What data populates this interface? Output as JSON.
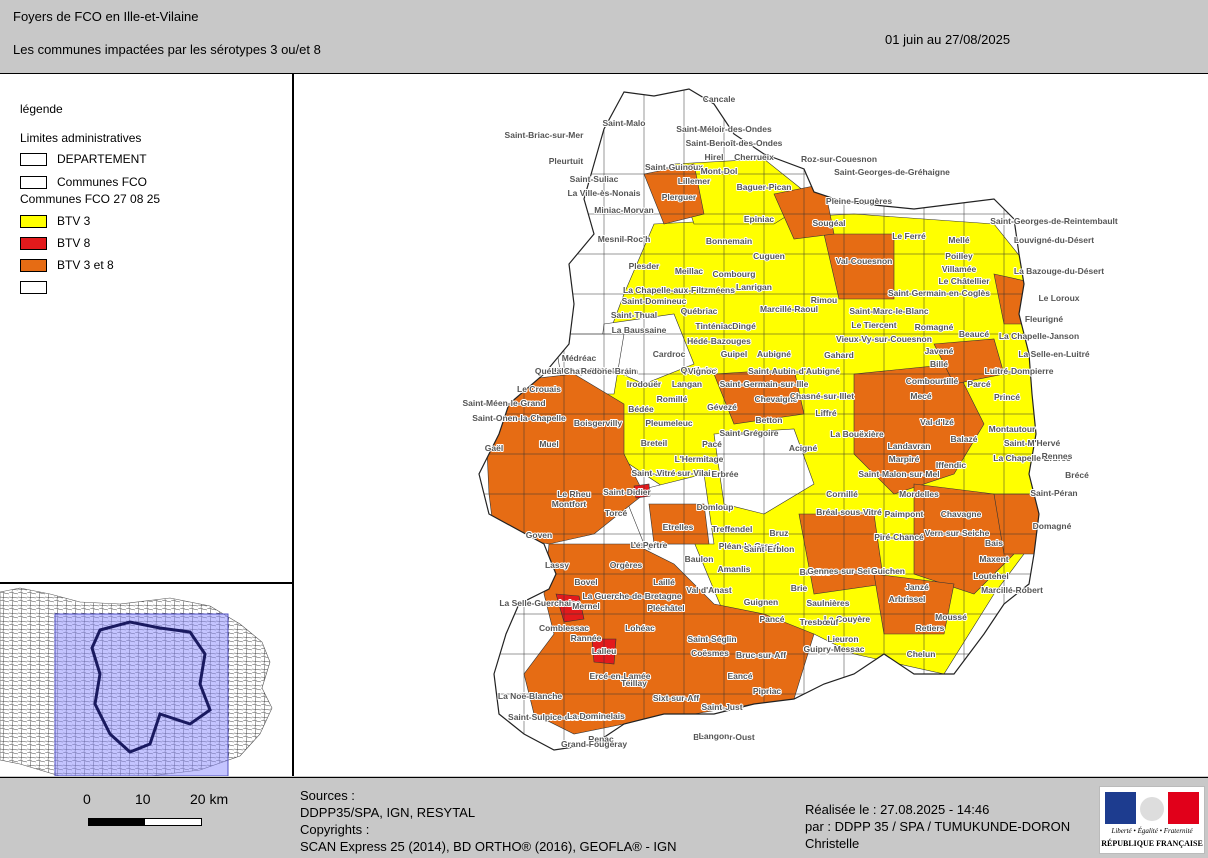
{
  "header": {
    "title": "Foyers de FCO en Ille-et-Vilaine",
    "subtitle": "Les communes impactées par les sérotypes 3 ou/et 8",
    "period": "01 juin au 27/08/2025"
  },
  "legend": {
    "title": "légende",
    "section_admin": "Limites administratives",
    "departement": "DEPARTEMENT",
    "communes": "Communes FCO",
    "section_fco": "Communes FCO 27 08 25",
    "btv3": "BTV 3",
    "btv8": "BTV 8",
    "btv38": "BTV 3 et 8",
    "colors": {
      "btv3": "#ffff00",
      "btv8": "#e31a1c",
      "btv38": "#e66c14",
      "none": "#ffffff"
    }
  },
  "communes": [
    "Cancale",
    "Saint-Malo",
    "Saint-Méloir-des-Ondes",
    "Saint-Briac-sur-Mer",
    "Saint-Benoît-des-Ondes",
    "Hirel",
    "Cherrueix",
    "Roz-sur-Couesnon",
    "Pleurtuit",
    "Saint-Guinoux",
    "Mont-Dol",
    "Saint-Georges-de-Gréhaigne",
    "Saint-Suliac",
    "Lillemer",
    "La Ville-ès-Nonais",
    "Baguer-Pican",
    "Plerguer",
    "Pleine-Fougères",
    "Miniac-Morvan",
    "Epiniac",
    "Sougéal",
    "Saint-Georges-de-Reintembault",
    "Mesnil-Roc'h",
    "Bonnemain",
    "Le Ferré",
    "Mellé",
    "Louvigné-du-Désert",
    "Poilley",
    "Cuguen",
    "Val-Couesnon",
    "Villamée",
    "Plesder",
    "Meillac",
    "Combourg",
    "La Bazouge-du-Désert",
    "Le Châtellier",
    "Lanrigan",
    "La Chapelle-aux-Filtzméens",
    "Saint-Germain-en-Coglès",
    "Saint-Domineuc",
    "Rimou",
    "Le Loroux",
    "Saint-Thual",
    "Québriac",
    "Marcillé-Raoul",
    "Saint-Marc-le-Blanc",
    "Fleurigné",
    "Tinténiac",
    "Dingé",
    "Le Tiercent",
    "Romagné",
    "La Baussaine",
    "Beaucé",
    "La Chapelle-Janson",
    "Hédé-Bazouges",
    "Vieux-Vy-sur-Couesnon",
    "Javené",
    "La Selle-en-Luitré",
    "Médréac",
    "Cardroc",
    "Guipel",
    "Aubigné",
    "Gahard",
    "Billé",
    "Luitré-Dompierre",
    "Québriac",
    "Quédillac",
    "Landujan",
    "Vignoc",
    "Saint-Aubin-d'Aubigné",
    "Combourtillé",
    "Parcé",
    "Le Crouais",
    "Irodouër",
    "Langan",
    "Saint-Germain-sur-Ille",
    "Saint-Méen-le-Grand",
    "Romillé",
    "Chevaigné",
    "Chasné-sur-Illet",
    "Mecé",
    "Princé",
    "Saint-Onen-la-Chapelle",
    "Bédée",
    "Gévezé",
    "Liffré",
    "Val-d'Izé",
    "Montautour",
    "Boisgervilly",
    "Pleumeleuc",
    "Betton",
    "La Bouëxière",
    "Balazé",
    "Saint-M'Hervé",
    "Gaël",
    "Muel",
    "Breteil",
    "Saint-Grégoire",
    "Pacé",
    "Landavran",
    "La Chapelle-Erbrée",
    "L'Hermitage",
    "Acigné",
    "Marpiré",
    "Iffendic",
    "Rennes",
    "Brécé",
    "Saint-Jean-sur-Vilaine",
    "Vitré",
    "Erbrée",
    "Saint-Malon-sur-Mel",
    "Mordelles",
    "Le Rheu",
    "Saint-Didier",
    "Cornillé",
    "Saint-Péran",
    "Montfort",
    "Domloup",
    "Bréal-sous-Vitré",
    "Paimpont",
    "Chavagne",
    "Vern-sur-Seiche",
    "Domagné",
    "Torcé",
    "Etrelles",
    "Treffendel",
    "Goven",
    "Bruz",
    "Piré-Chancé",
    "Vergéal",
    "Le Pertre",
    "Pléan-le-Grand",
    "Saint-Erblon",
    "Bais",
    "Maxent",
    "Baulon",
    "Lassy",
    "Orgères",
    "Amanlis",
    "Brielles",
    "Gennes-sur-Seiche",
    "Guichen",
    "Loutehel",
    "Bovel",
    "Laillé",
    "Brie",
    "Janzé",
    "Marcillé-Robert",
    "La Guerche-de-Bretagne",
    "Val d'Anast",
    "Guignen",
    "Saulnières",
    "Arbrissel",
    "La Selle-Guerchaise",
    "Mernel",
    "Pléchâtel",
    "Pancé",
    "La Couyère",
    "Moussé",
    "Comblessac",
    "Lohéac",
    "Tresbœuf",
    "Retiers",
    "Rannée",
    "Saint-Séglin",
    "Lieuron",
    "Lalleu",
    "Coësmes",
    "Bruc-sur-Aff",
    "Guipry-Messac",
    "Chelun",
    "Ercé-en-Lamée",
    "Eancé",
    "Pipriac",
    "La Noë-Blanche",
    "Teillay",
    "Sixt-sur-Aff",
    "Saint-Just",
    "Saint-Sulpice-des-Landes",
    "La Dominelais",
    "Bains-sur-Oust",
    "Langon",
    "Renac",
    "Grand-Fougeray",
    "Sainte-Marie",
    "La Chapelle-de-Brain",
    "Redon"
  ],
  "footer": {
    "scale": {
      "ticks": [
        "0",
        "10",
        "20 km"
      ]
    },
    "sources_title": "Sources :",
    "sources": "DDPP35/SPA, IGN, RESYTAL",
    "copyrights_title": "Copyrights :",
    "copyrights": "SCAN Express 25 (2014), BD ORTHO® (2016), GEOFLA® - IGN",
    "made_on": "Réalisée le : 27.08.2025 - 14:46",
    "made_by": "par : DDPP 35 / SPA / TUMUKUNDE-DORON",
    "made_by_2": "Christelle",
    "logo": {
      "motto": "Liberté • Égalité • Fraternité",
      "name": "RÉPUBLIQUE FRANÇAISE"
    }
  }
}
